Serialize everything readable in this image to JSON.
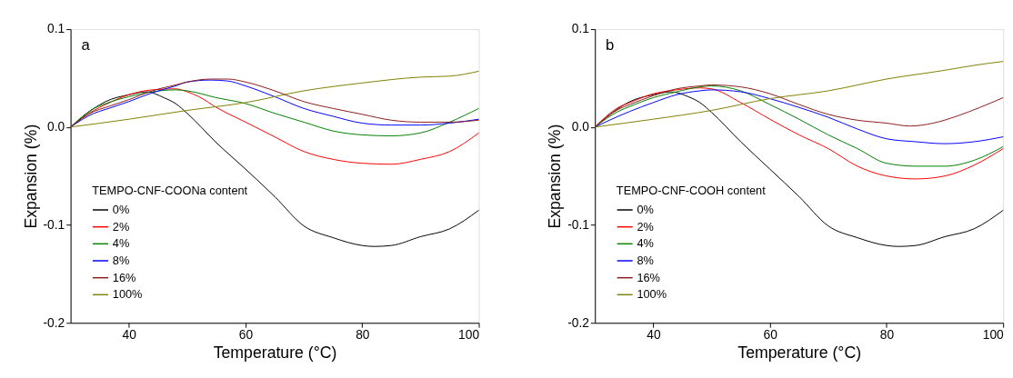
{
  "chart_data": [
    {
      "type": "line",
      "xlabel": "Temperature (°C)",
      "ylabel": "Expansion (%)",
      "legend_title": "TEMPO-CNF-COONa content",
      "legend": "bottom left",
      "grid": false,
      "annotations": [
        "a"
      ],
      "xlim": [
        30,
        100
      ],
      "xticks": [
        40,
        60,
        80,
        100
      ],
      "ylim": [
        -0.2,
        0.1
      ],
      "yticks": [
        -0.2,
        -0.1,
        {
          "value": 0,
          "label": "0.0"
        },
        0.1
      ],
      "series": [
        {
          "name": "0%",
          "color": "#000000",
          "x": [
            30,
            34,
            36,
            40,
            43,
            46,
            48,
            50,
            55,
            60,
            65,
            70,
            75,
            80,
            82,
            85,
            90,
            95,
            100
          ],
          "values": [
            0,
            0.019,
            0.026,
            0.033,
            0.036,
            0.03,
            0.024,
            0.014,
            -0.016,
            -0.043,
            -0.071,
            -0.101,
            -0.113,
            -0.121,
            -0.122,
            -0.121,
            -0.112,
            -0.104,
            -0.085
          ]
        },
        {
          "name": "2%",
          "color": "#ff0000",
          "x": [
            30,
            34,
            36,
            40,
            44,
            48,
            50,
            52,
            55,
            60,
            65,
            70,
            75,
            80,
            85,
            90,
            95,
            100
          ],
          "values": [
            0,
            0.017,
            0.023,
            0.033,
            0.038,
            0.039,
            0.036,
            0.031,
            0.02,
            0.005,
            -0.01,
            -0.025,
            -0.033,
            -0.037,
            -0.038,
            -0.033,
            -0.025,
            -0.006
          ]
        },
        {
          "name": "4%",
          "color": "#008000",
          "x": [
            30,
            34,
            36,
            40,
            44,
            48,
            50,
            55,
            60,
            65,
            70,
            75,
            80,
            85,
            90,
            95,
            100
          ],
          "values": [
            0,
            0.019,
            0.024,
            0.031,
            0.036,
            0.038,
            0.037,
            0.03,
            0.024,
            0.014,
            0.005,
            -0.004,
            -0.008,
            -0.009,
            -0.006,
            0.005,
            0.019
          ]
        },
        {
          "name": "8%",
          "color": "#0000ff",
          "x": [
            30,
            34,
            36,
            40,
            44,
            48,
            50,
            54,
            57,
            60,
            65,
            70,
            75,
            80,
            85,
            90,
            95,
            100
          ],
          "values": [
            0,
            0.014,
            0.018,
            0.026,
            0.035,
            0.042,
            0.046,
            0.048,
            0.047,
            0.042,
            0.031,
            0.019,
            0.011,
            0.004,
            0.002,
            0.002,
            0.004,
            0.008
          ]
        },
        {
          "name": "16%",
          "color": "#8b1a1a",
          "x": [
            30,
            34,
            36,
            40,
            44,
            48,
            50,
            54,
            57,
            60,
            65,
            70,
            75,
            80,
            85,
            90,
            95,
            100
          ],
          "values": [
            0,
            0.016,
            0.02,
            0.028,
            0.037,
            0.043,
            0.046,
            0.049,
            0.049,
            0.046,
            0.037,
            0.026,
            0.019,
            0.013,
            0.007,
            0.005,
            0.005,
            0.007
          ]
        },
        {
          "name": "100%",
          "color": "#808000",
          "x": [
            30,
            40,
            50,
            60,
            70,
            80,
            90,
            95,
            100
          ],
          "values": [
            0,
            0.008,
            0.017,
            0.025,
            0.037,
            0.045,
            0.051,
            0.052,
            0.057
          ]
        }
      ]
    },
    {
      "type": "line",
      "xlabel": "Temperature (°C)",
      "ylabel": "Expansion (%)",
      "legend_title": "TEMPO-CNF-COOH content",
      "legend": "bottom left",
      "grid": false,
      "annotations": [
        "b"
      ],
      "xlim": [
        30,
        100
      ],
      "xticks": [
        40,
        60,
        80,
        100
      ],
      "ylim": [
        -0.2,
        0.1
      ],
      "yticks": [
        -0.2,
        -0.1,
        {
          "value": 0,
          "label": "0.0"
        },
        0.1
      ],
      "series": [
        {
          "name": "0%",
          "color": "#000000",
          "x": [
            30,
            34,
            36,
            40,
            43,
            46,
            48,
            50,
            55,
            60,
            65,
            70,
            75,
            80,
            82,
            85,
            90,
            95,
            100
          ],
          "values": [
            0,
            0.019,
            0.026,
            0.033,
            0.036,
            0.031,
            0.025,
            0.015,
            -0.015,
            -0.043,
            -0.071,
            -0.101,
            -0.113,
            -0.121,
            -0.122,
            -0.121,
            -0.112,
            -0.104,
            -0.085
          ]
        },
        {
          "name": "2%",
          "color": "#ff0000",
          "x": [
            30,
            34,
            36,
            40,
            44,
            48,
            50,
            55,
            60,
            65,
            70,
            75,
            80,
            85,
            90,
            95,
            100
          ],
          "values": [
            0,
            0.02,
            0.025,
            0.034,
            0.038,
            0.04,
            0.039,
            0.025,
            0.008,
            -0.008,
            -0.022,
            -0.04,
            -0.05,
            -0.053,
            -0.05,
            -0.039,
            -0.022
          ]
        },
        {
          "name": "4%",
          "color": "#008000",
          "x": [
            30,
            34,
            36,
            40,
            44,
            48,
            50,
            55,
            60,
            65,
            70,
            75,
            80,
            85,
            90,
            95,
            100
          ],
          "values": [
            0,
            0.016,
            0.021,
            0.03,
            0.036,
            0.041,
            0.042,
            0.037,
            0.023,
            0.008,
            -0.008,
            -0.022,
            -0.037,
            -0.04,
            -0.04,
            -0.034,
            -0.02
          ]
        },
        {
          "name": "8%",
          "color": "#0000ff",
          "x": [
            30,
            34,
            36,
            40,
            44,
            48,
            50,
            55,
            60,
            65,
            70,
            75,
            80,
            85,
            90,
            95,
            100
          ],
          "values": [
            0,
            0.011,
            0.016,
            0.025,
            0.033,
            0.037,
            0.038,
            0.036,
            0.029,
            0.02,
            0.01,
            -0.002,
            -0.012,
            -0.015,
            -0.017,
            -0.015,
            -0.01
          ]
        },
        {
          "name": "16%",
          "color": "#8b1a1a",
          "x": [
            30,
            34,
            36,
            40,
            44,
            48,
            50,
            55,
            60,
            65,
            70,
            75,
            80,
            84,
            88,
            92,
            96,
            100
          ],
          "values": [
            0,
            0.018,
            0.023,
            0.032,
            0.039,
            0.042,
            0.043,
            0.041,
            0.034,
            0.023,
            0.013,
            0.007,
            0.004,
            0.001,
            0.004,
            0.011,
            0.02,
            0.03
          ]
        },
        {
          "name": "100%",
          "color": "#808000",
          "x": [
            30,
            40,
            50,
            60,
            70,
            80,
            90,
            95,
            100
          ],
          "values": [
            0,
            0.008,
            0.017,
            0.029,
            0.037,
            0.049,
            0.058,
            0.063,
            0.067
          ]
        }
      ]
    }
  ]
}
